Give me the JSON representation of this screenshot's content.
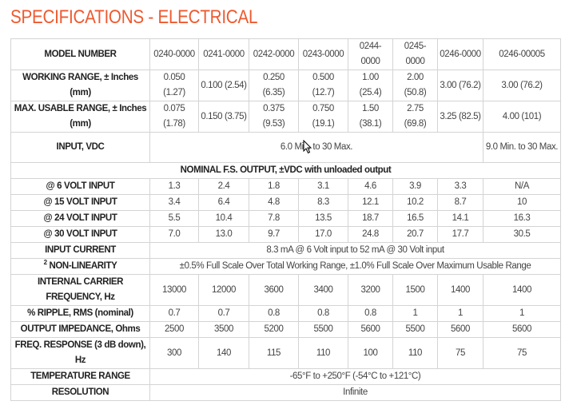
{
  "title": "SPECIFICATIONS - ELECTRICAL",
  "models": {
    "label": "MODEL NUMBER",
    "values": [
      "0240-0000",
      "0241-0000",
      "0242-0000",
      "0243-0000",
      "0244-0000",
      "0245-0000",
      "0246-0000",
      "0246-00005"
    ]
  },
  "working_range": {
    "label": "WORKING RANGE, ± Inches (mm)",
    "values": [
      "0.050 (1.27)",
      "0.100 (2.54)",
      "0.250 (6.35)",
      "0.500 (12.7)",
      "1.00 (25.4)",
      "2.00 (50.8)",
      "3.00 (76.2)",
      "3.00 (76.2)"
    ]
  },
  "max_usable_range": {
    "label": "MAX. USABLE RANGE, ± Inches (mm)",
    "values": [
      "0.075 (1.78)",
      "0.150 (3.75)",
      "0.375 (9.53)",
      "0.750 (19.1)",
      "1.50 (38.1)",
      "2.75 (69.8)",
      "3.25 (82.5)",
      "4.00 (101)"
    ]
  },
  "input_vdc": {
    "label": "INPUT, VDC",
    "span_value": "6.0 Min. to 30 Max.",
    "last_value": "9.0 Min. to 30 Max."
  },
  "nominal_section": "NOMINAL F.S. OUTPUT, ±VDC with unloaded output",
  "nominal_rows": [
    {
      "label": "@ 6 VOLT INPUT",
      "values": [
        "1.3",
        "2.4",
        "1.8",
        "3.1",
        "4.6",
        "3.9",
        "3.3",
        "N/A"
      ]
    },
    {
      "label": "@ 15 VOLT INPUT",
      "values": [
        "3.4",
        "6.4",
        "4.8",
        "8.3",
        "12.1",
        "10.2",
        "8.7",
        "10"
      ]
    },
    {
      "label": "@ 24 VOLT INPUT",
      "values": [
        "5.5",
        "10.4",
        "7.8",
        "13.5",
        "18.7",
        "16.5",
        "14.1",
        "16.3"
      ]
    },
    {
      "label": "@ 30 VOLT INPUT",
      "values": [
        "7.0",
        "13.0",
        "9.7",
        "17.0",
        "24.8",
        "20.7",
        "17.7",
        "30.5"
      ]
    }
  ],
  "input_current": {
    "label": "INPUT CURRENT",
    "value": "8.3 mA @ 6 Volt input to 52 mA @ 30 Volt input"
  },
  "non_linearity": {
    "footnote": "2",
    "label": "NON-LINEARITY",
    "value": "±0.5% Full Scale Over Total Working Range, ±1.0% Full Scale Over Maximum Usable Range"
  },
  "carrier_frequency": {
    "label": "INTERNAL CARRIER FREQUENCY, Hz",
    "values": [
      "13000",
      "12000",
      "3600",
      "3400",
      "3200",
      "1500",
      "1400",
      "1400"
    ]
  },
  "ripple": {
    "label": "% RIPPLE, RMS (nominal)",
    "values": [
      "0.7",
      "0.7",
      "0.8",
      "0.8",
      "0.8",
      "1",
      "1",
      "1"
    ]
  },
  "output_impedance": {
    "label": "OUTPUT IMPEDANCE, Ohms",
    "values": [
      "2500",
      "3500",
      "5200",
      "5500",
      "5600",
      "5500",
      "5600",
      "5600"
    ]
  },
  "freq_response": {
    "label": "FREQ. RESPONSE (3 dB down), Hz",
    "values": [
      "300",
      "140",
      "115",
      "110",
      "100",
      "110",
      "75",
      "75"
    ]
  },
  "temperature_range": {
    "label": "TEMPERATURE RANGE",
    "value": "-65°F to +250°F (-54°C to +121°C)"
  },
  "resolution": {
    "label": "RESOLUTION",
    "value": "Infinite"
  },
  "colors": {
    "title": "#ee5a2f",
    "border": "#d4d4d4"
  },
  "cursor_icon": "mouse-pointer-icon"
}
